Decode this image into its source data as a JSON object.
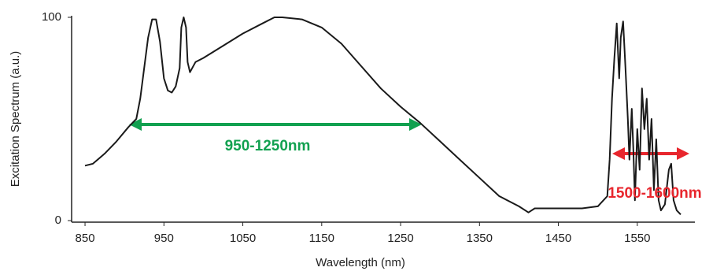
{
  "chart_data": {
    "type": "line",
    "x_label": "Wavelength (nm)",
    "y_label": "Excitation Spectrum (a.u.)",
    "xlim": [
      833,
      1623
    ],
    "xticks": [
      850,
      950,
      1050,
      1150,
      1250,
      1350,
      1450,
      1550
    ],
    "ylim": [
      0,
      100
    ],
    "yticks": [
      0,
      100
    ],
    "color": "#1a1a1a",
    "annotations": [
      {
        "text": "950-1250nm",
        "color": "#12a150"
      },
      {
        "text": "1500-1600nm",
        "color": "#e8262d"
      }
    ],
    "x": [
      850,
      860,
      875,
      890,
      905,
      915,
      920,
      925,
      930,
      935,
      940,
      945,
      950,
      955,
      960,
      965,
      970,
      972,
      975,
      978,
      980,
      983,
      990,
      1000,
      1025,
      1050,
      1075,
      1090,
      1100,
      1125,
      1150,
      1175,
      1200,
      1225,
      1250,
      1275,
      1300,
      1325,
      1350,
      1375,
      1400,
      1412,
      1420,
      1450,
      1480,
      1500,
      1512,
      1515,
      1518,
      1521,
      1524,
      1527,
      1529,
      1532,
      1535,
      1538,
      1540,
      1543,
      1545,
      1547,
      1550,
      1553,
      1556,
      1559,
      1562,
      1565,
      1568,
      1571,
      1574,
      1577,
      1580,
      1585,
      1590,
      1593,
      1596,
      1600,
      1605
    ],
    "values": [
      27,
      28,
      33,
      39,
      46,
      50,
      60,
      75,
      90,
      99,
      99,
      88,
      70,
      64,
      63,
      66,
      75,
      95,
      100,
      95,
      78,
      73,
      78,
      80,
      86,
      92,
      97,
      100,
      100,
      99,
      95,
      87,
      76,
      65,
      56,
      48,
      39,
      30,
      21,
      12,
      7,
      4,
      6,
      6,
      6,
      7,
      12,
      30,
      60,
      80,
      97,
      70,
      90,
      98,
      75,
      50,
      30,
      55,
      35,
      10,
      45,
      25,
      65,
      45,
      60,
      30,
      50,
      15,
      40,
      10,
      5,
      8,
      25,
      28,
      10,
      5,
      3
    ]
  }
}
